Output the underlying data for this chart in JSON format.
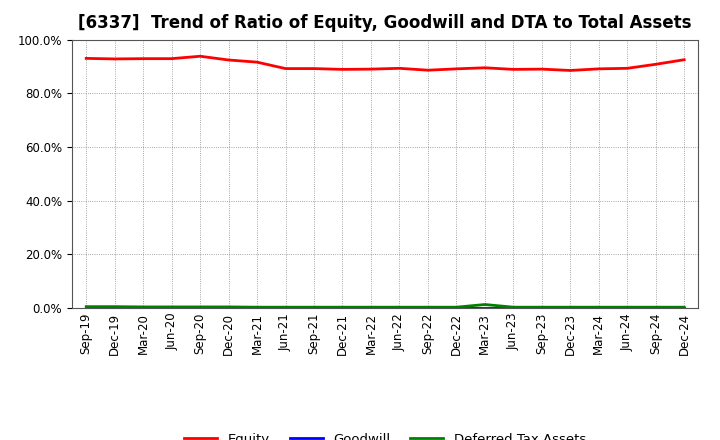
{
  "title": "[6337]  Trend of Ratio of Equity, Goodwill and DTA to Total Assets",
  "x_labels": [
    "Sep-19",
    "Dec-19",
    "Mar-20",
    "Jun-20",
    "Sep-20",
    "Dec-20",
    "Mar-21",
    "Jun-21",
    "Sep-21",
    "Dec-21",
    "Mar-22",
    "Jun-22",
    "Sep-22",
    "Dec-22",
    "Mar-23",
    "Jun-23",
    "Sep-23",
    "Dec-23",
    "Mar-24",
    "Jun-24",
    "Sep-24",
    "Dec-24"
  ],
  "equity": [
    0.93,
    0.928,
    0.929,
    0.929,
    0.938,
    0.924,
    0.916,
    0.892,
    0.892,
    0.889,
    0.89,
    0.893,
    0.886,
    0.891,
    0.895,
    0.889,
    0.89,
    0.885,
    0.891,
    0.893,
    0.908,
    0.925
  ],
  "goodwill": [
    0.0,
    0.0,
    0.0,
    0.0,
    0.0,
    0.0,
    0.0,
    0.0,
    0.0,
    0.0,
    0.0,
    0.0,
    0.0,
    0.0,
    0.0,
    0.0,
    0.0,
    0.0,
    0.0,
    0.0,
    0.0,
    0.0
  ],
  "dta": [
    0.005,
    0.005,
    0.004,
    0.004,
    0.004,
    0.004,
    0.003,
    0.003,
    0.003,
    0.003,
    0.003,
    0.003,
    0.003,
    0.003,
    0.013,
    0.003,
    0.003,
    0.003,
    0.003,
    0.003,
    0.003,
    0.003
  ],
  "equity_color": "#FF0000",
  "goodwill_color": "#0000FF",
  "dta_color": "#008000",
  "background_color": "#FFFFFF",
  "grid_color": "#888888",
  "ylim": [
    0.0,
    1.0
  ],
  "yticks": [
    0.0,
    0.2,
    0.4,
    0.6,
    0.8,
    1.0
  ],
  "legend_labels": [
    "Equity",
    "Goodwill",
    "Deferred Tax Assets"
  ],
  "title_fontsize": 12,
  "line_width": 2.0,
  "tick_fontsize": 8.5,
  "legend_fontsize": 9.5
}
